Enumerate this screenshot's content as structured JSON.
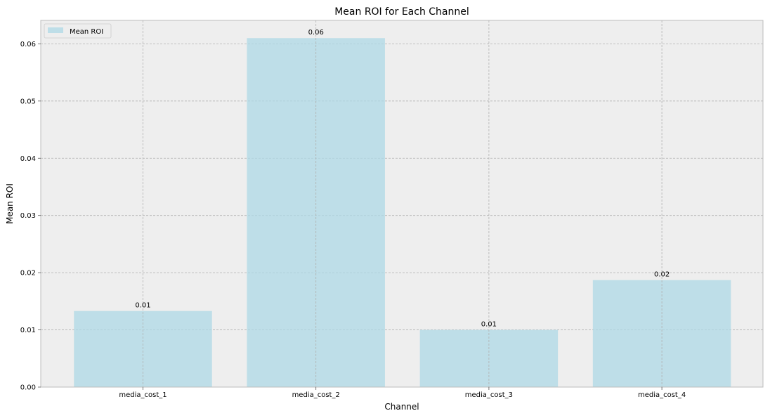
{
  "chart_data": {
    "type": "bar",
    "title": "Mean ROI for Each Channel",
    "xlabel": "Channel",
    "ylabel": "Mean ROI",
    "categories": [
      "media_cost_1",
      "media_cost_2",
      "media_cost_3",
      "media_cost_4"
    ],
    "values": [
      0.0133,
      0.061,
      0.01,
      0.0187
    ],
    "data_labels": [
      "0.01",
      "0.06",
      "0.01",
      "0.02"
    ],
    "yticks": [
      0.0,
      0.01,
      0.02,
      0.03,
      0.04,
      0.05,
      0.06
    ],
    "ytick_labels": [
      "0.00",
      "0.01",
      "0.02",
      "0.03",
      "0.04",
      "0.05",
      "0.06"
    ],
    "ylim": [
      0,
      0.0641
    ],
    "grid": true,
    "legend": {
      "label": "Mean ROI",
      "placement": "top-left"
    },
    "colors": {
      "bar": "#add8e6",
      "plot_bg": "#eeeeee",
      "frame": "#bcbcbc"
    }
  }
}
